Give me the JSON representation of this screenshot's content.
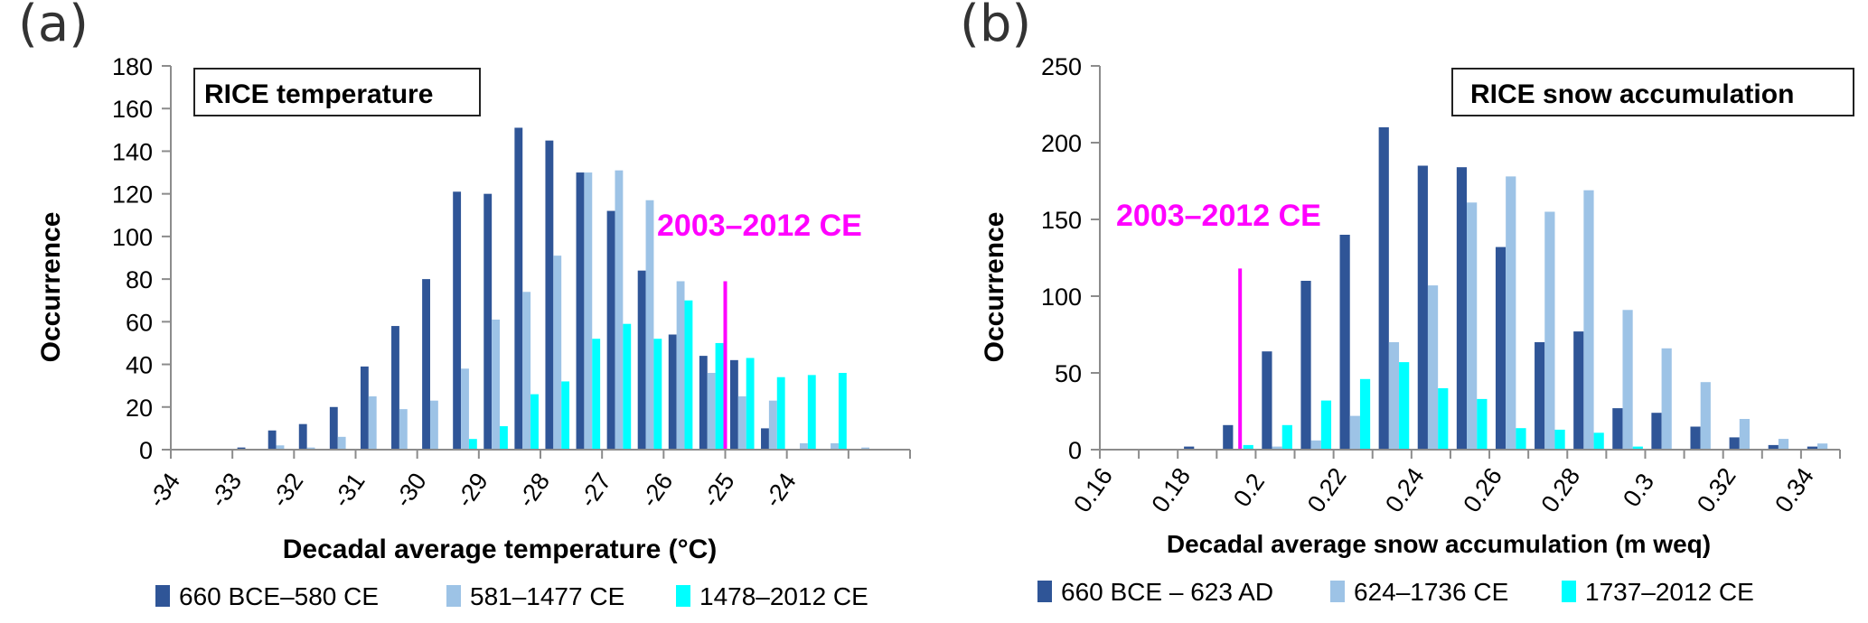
{
  "figure": {
    "colors": {
      "series1": "#2f5597",
      "series2": "#9dc3e6",
      "series3": "#00ffff",
      "marker": "#ff00ff",
      "axis": "#8c8c8c"
    }
  },
  "chart_data": [
    {
      "type": "bar",
      "panel_label": "(a)",
      "title": "RICE temperature",
      "xlabel": "Decadal average temperature (°C)",
      "ylabel": "Occurrence",
      "ylim": [
        0,
        180
      ],
      "yticks": [
        0,
        20,
        40,
        60,
        80,
        100,
        120,
        140,
        160,
        180
      ],
      "xlim": [
        -34,
        -22
      ],
      "bin_width": 0.5,
      "xtick_labels": [
        "-34",
        "-33",
        "-32",
        "-31",
        "-30",
        "-29",
        "-28",
        "-27",
        "-26",
        "-25",
        "-24",
        "",
        ""
      ],
      "categories": [
        -34,
        -33.5,
        -33,
        -32.5,
        -32,
        -31.5,
        -31,
        -30.5,
        -30,
        -29.5,
        -29,
        -28.5,
        -28,
        -27.5,
        -27,
        -26.5,
        -26,
        -25.5,
        -25,
        -24.5,
        -24,
        -23.5,
        -23,
        -22.5
      ],
      "series": [
        {
          "name": "660 BCE–580 CE",
          "values": [
            0,
            0,
            1,
            9,
            12,
            20,
            39,
            58,
            80,
            121,
            120,
            151,
            145,
            130,
            112,
            84,
            54,
            44,
            42,
            10,
            0,
            0,
            0,
            0
          ]
        },
        {
          "name": "581–1477 CE",
          "values": [
            0,
            0,
            0,
            2,
            1,
            6,
            25,
            19,
            23,
            38,
            61,
            74,
            91,
            130,
            131,
            117,
            79,
            36,
            25,
            23,
            3,
            3,
            1,
            0
          ]
        },
        {
          "name": "1478–2012 CE",
          "values": [
            0,
            0,
            0,
            0,
            0,
            0,
            0,
            0,
            0,
            5,
            11,
            26,
            32,
            52,
            59,
            52,
            70,
            50,
            43,
            34,
            35,
            36,
            0,
            0
          ]
        }
      ],
      "annotation": {
        "text": "2003–2012 CE",
        "x": -25,
        "value": 79
      },
      "legend": {
        "placement": "bottom",
        "entries": [
          "660 BCE–580 CE",
          "581–1477 CE",
          "1478–2012 CE"
        ]
      },
      "grid": false
    },
    {
      "type": "bar",
      "panel_label": "(b)",
      "title": "RICE snow accumulation",
      "xlabel": "Decadal average snow accumulation (m weq)",
      "ylabel": "Occurrence",
      "ylim": [
        0,
        250
      ],
      "yticks": [
        0,
        50,
        100,
        150,
        200,
        250
      ],
      "xlim": [
        0.16,
        0.35
      ],
      "bin_width": 0.01,
      "xtick_labels": [
        "0.16",
        "",
        "0.18",
        "",
        "0.2",
        "",
        "0.22",
        "",
        "0.24",
        "",
        "0.26",
        "",
        "0.28",
        "",
        "0.3",
        "",
        "0.32",
        "",
        "0.34",
        ""
      ],
      "categories": [
        0.16,
        0.17,
        0.18,
        0.19,
        0.2,
        0.21,
        0.22,
        0.23,
        0.24,
        0.25,
        0.26,
        0.27,
        0.28,
        0.29,
        0.3,
        0.31,
        0.32,
        0.33,
        0.34
      ],
      "series": [
        {
          "name": "660 BCE – 623 AD",
          "values": [
            0,
            0,
            2,
            16,
            64,
            110,
            140,
            210,
            185,
            184,
            132,
            70,
            77,
            27,
            24,
            15,
            8,
            3,
            2
          ]
        },
        {
          "name": "624–1736 CE",
          "values": [
            0,
            0,
            0,
            0,
            2,
            6,
            22,
            70,
            107,
            161,
            178,
            155,
            169,
            91,
            66,
            44,
            20,
            7,
            4
          ]
        },
        {
          "name": "1737–2012 CE",
          "values": [
            0,
            0,
            0,
            3,
            16,
            32,
            46,
            57,
            40,
            33,
            14,
            13,
            11,
            2,
            0,
            0,
            0,
            0,
            0
          ]
        }
      ],
      "annotation": {
        "text": "2003–2012 CE",
        "x": 0.195,
        "value": 118
      },
      "legend": {
        "placement": "bottom",
        "entries": [
          "660 BCE – 623 AD",
          "624–1736 CE",
          "1737–2012 CE"
        ]
      },
      "grid": false
    }
  ]
}
